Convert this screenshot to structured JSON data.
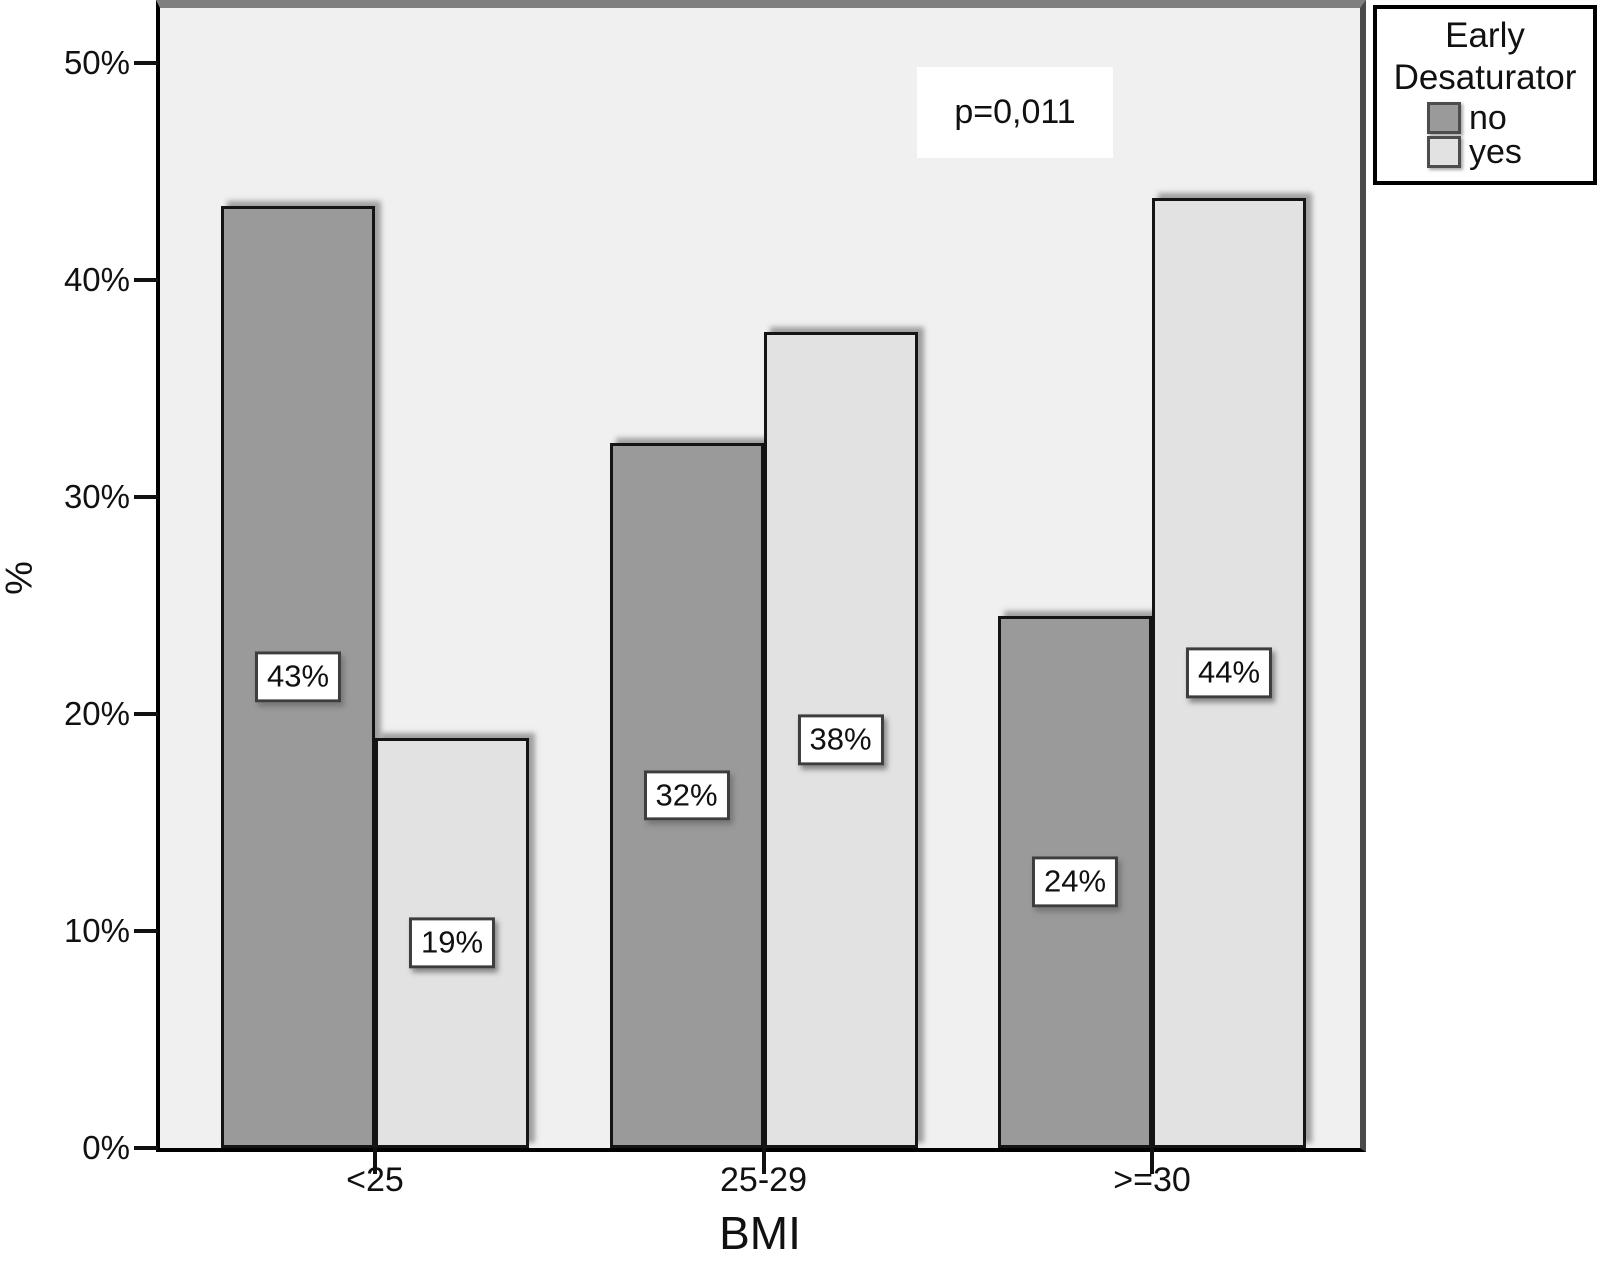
{
  "chart_data": {
    "type": "bar",
    "title": "",
    "xlabel": "BMI",
    "ylabel": "%",
    "categories": [
      "<25",
      "25-29",
      ">=30"
    ],
    "series": [
      {
        "name": "no",
        "color": "#9a9a9a",
        "values": [
          43.4,
          32.5,
          24.5
        ],
        "data_labels": [
          "43%",
          "32%",
          "24%"
        ]
      },
      {
        "name": "yes",
        "color": "#e2e2e2",
        "values": [
          18.9,
          37.6,
          43.8
        ],
        "data_labels": [
          "19%",
          "38%",
          "44%"
        ]
      }
    ],
    "ytick_values": [
      0,
      10,
      20,
      30,
      40,
      50
    ],
    "ytick_labels": [
      "0%",
      "10%",
      "20%",
      "30%",
      "40%",
      "50%"
    ],
    "ylim": [
      0,
      52.5
    ],
    "grid": "off",
    "legend": {
      "title": "Early Desaturator",
      "title_lines": [
        "Early",
        "Desaturator"
      ],
      "position": "top-right-outside"
    },
    "annotations": [
      {
        "text": "p=0,011"
      }
    ],
    "colors": {
      "plot_background": "#f0f0f0",
      "bar_no": "#9a9a9a",
      "bar_yes": "#e2e2e2",
      "frame_top": "#7f7f7f",
      "axis": "#000000"
    }
  }
}
